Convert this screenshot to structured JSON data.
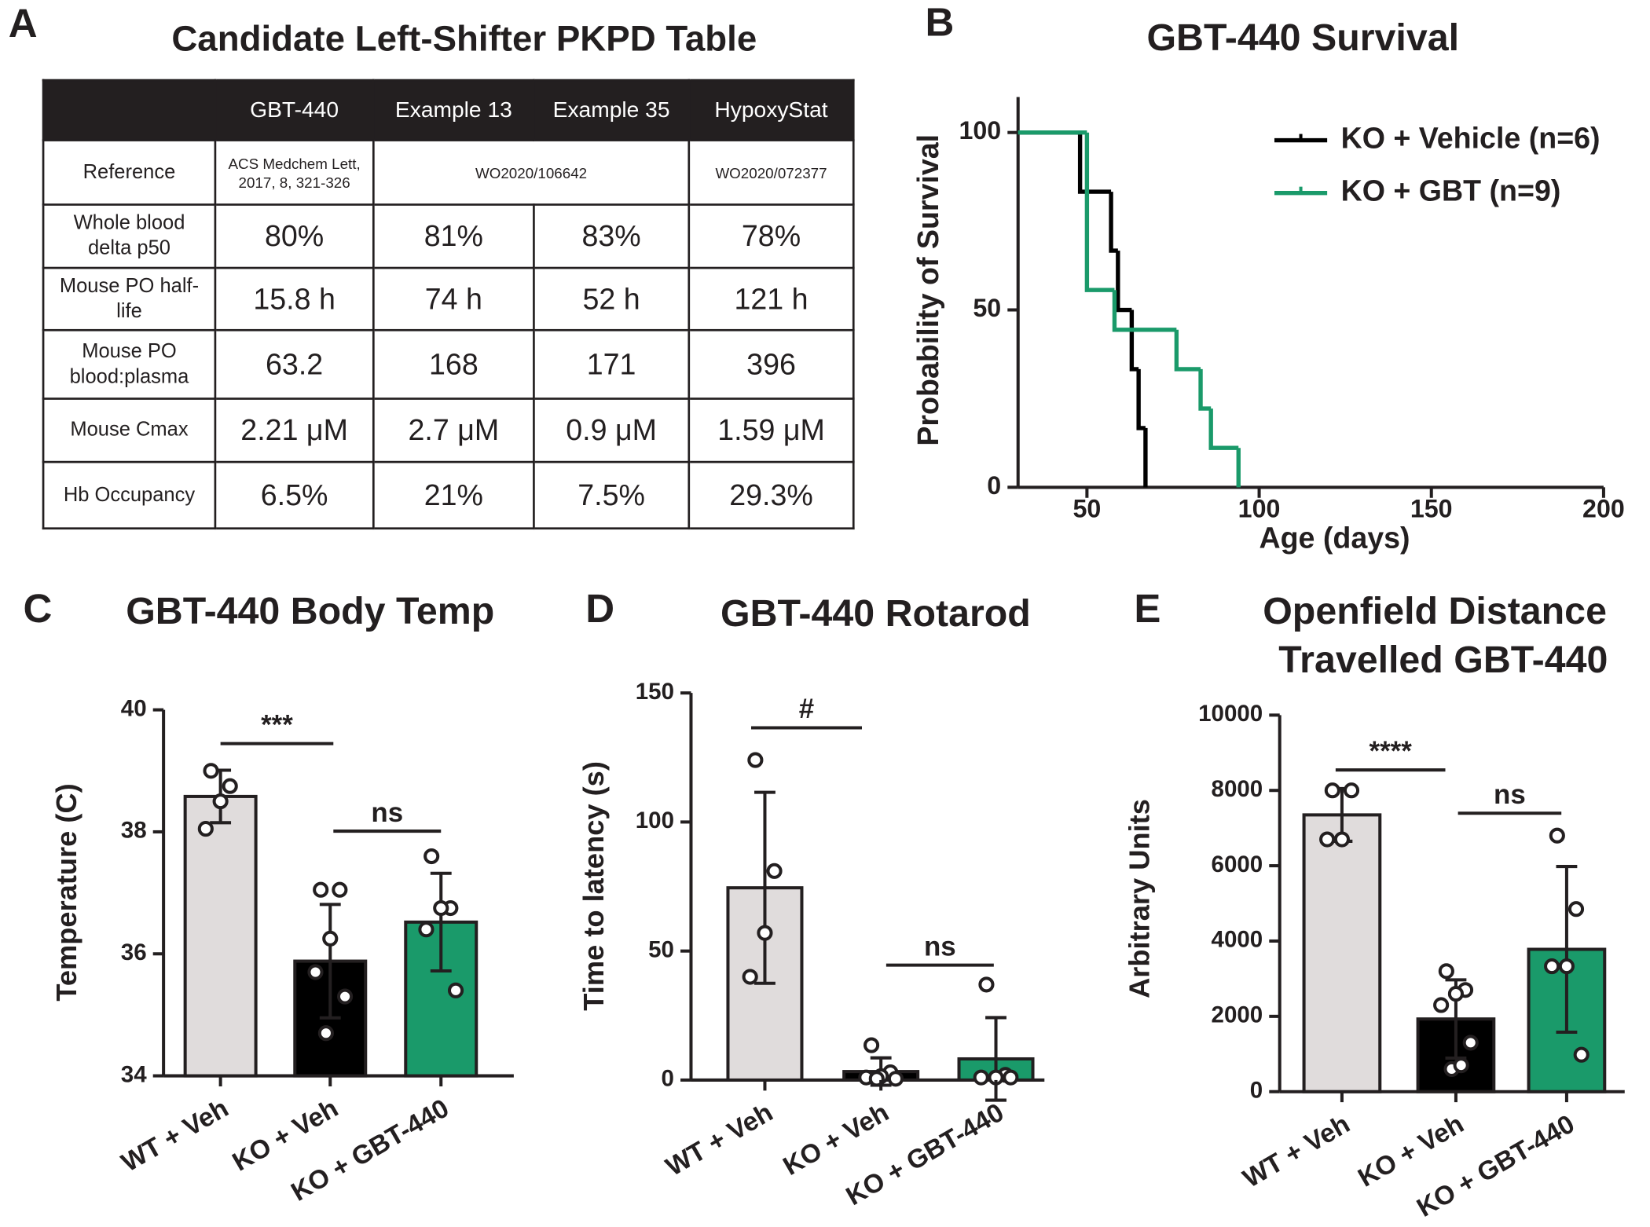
{
  "panel_a": {
    "panel_label": "A",
    "title": "Candidate Left-Shifter PKPD Table",
    "columns": [
      "GBT-440",
      "Example 13",
      "Example 35",
      "HypoxyStat"
    ],
    "reference_label": "Reference",
    "references": [
      "ACS Medchem Lett, 2017, 8, 321-326",
      "WO2020/106642",
      "WO2020/072377"
    ],
    "rows": [
      {
        "label": "Whole blood delta p50",
        "cells": [
          "80%",
          "81%",
          "83%",
          "78%"
        ]
      },
      {
        "label": "Mouse PO half-life",
        "cells": [
          "15.8 h",
          "74 h",
          "52 h",
          "121 h"
        ]
      },
      {
        "label": "Mouse PO blood:plasma",
        "cells": [
          "63.2",
          "168",
          "171",
          "396"
        ]
      },
      {
        "label": "Mouse Cmax",
        "cells": [
          "2.21 μM",
          "2.7 μM",
          "0.9 μM",
          "1.59 μM"
        ]
      },
      {
        "label": "Hb Occupancy",
        "cells": [
          "6.5%",
          "21%",
          "7.5%",
          "29.3%"
        ]
      }
    ]
  },
  "chart_data": [
    {
      "type": "step",
      "panel_label": "B",
      "title": "GBT-440 Survival",
      "xlabel": "Age (days)",
      "ylabel": "Probability of Survival",
      "xlim": [
        30,
        200
      ],
      "xticks": [
        50,
        100,
        150,
        200
      ],
      "ylim": [
        0,
        110
      ],
      "yticks": [
        0,
        50,
        100
      ],
      "series": [
        {
          "name": "KO + Vehicle (n=6)",
          "color": "#000000",
          "x": [
            30,
            48,
            57,
            59,
            63,
            65,
            67
          ],
          "values": [
            100,
            83.3,
            66.7,
            50,
            33.3,
            16.7,
            0
          ]
        },
        {
          "name": "KO + GBT (n=9)",
          "color": "#1a9a6a",
          "x": [
            30,
            50,
            58,
            76,
            83,
            86,
            94
          ],
          "values": [
            100,
            55.6,
            44.4,
            33.3,
            22.2,
            11.1,
            0
          ]
        }
      ]
    },
    {
      "type": "bar",
      "panel_label": "C",
      "title": "GBT-440 Body Temp",
      "ylabel": "Temperature (C)",
      "categories": [
        "WT + Veh",
        "KO + Veh",
        "KO + GBT-440"
      ],
      "colors": [
        "#e0dcdc",
        "#000000",
        "#1a9a6a"
      ],
      "values": [
        38.58,
        35.88,
        36.52
      ],
      "errors": [
        0.43,
        0.93,
        0.8
      ],
      "points": [
        [
          39.0,
          38.75,
          38.5,
          38.05
        ],
        [
          37.05,
          37.05,
          36.25,
          35.7,
          35.3,
          34.7
        ],
        [
          37.6,
          36.75,
          36.75,
          36.4,
          35.4
        ]
      ],
      "ylim": [
        34,
        40
      ],
      "yticks": [
        34,
        36,
        38,
        40
      ],
      "annotations": [
        "***",
        "ns"
      ]
    },
    {
      "type": "bar",
      "panel_label": "D",
      "title": "GBT-440 Rotarod",
      "ylabel": "Time to latency (s)",
      "categories": [
        "WT + Veh",
        "KO + Veh",
        "KO + GBT-440"
      ],
      "colors": [
        "#e0dcdc",
        "#000000",
        "#1a9a6a"
      ],
      "values": [
        74.5,
        3.3,
        8.2
      ],
      "errors": [
        37,
        5.3,
        16
      ],
      "points": [
        [
          124,
          81,
          57,
          40
        ],
        [
          13.5,
          3,
          1.5,
          1,
          0.5,
          0.5
        ],
        [
          37,
          2,
          1,
          1,
          1
        ]
      ],
      "ylim": [
        0,
        150
      ],
      "yticks": [
        0,
        50,
        100,
        150
      ],
      "annotations": [
        "#",
        "ns"
      ]
    },
    {
      "type": "bar",
      "panel_label": "E",
      "title": [
        "Openfield Distance",
        "Travelled GBT-440"
      ],
      "ylabel": "Arbitrary Units",
      "categories": [
        "WT + Veh",
        "KO + Veh",
        "KO + GBT-440"
      ],
      "colors": [
        "#e0dcdc",
        "#000000",
        "#1a9a6a"
      ],
      "values": [
        7350,
        1930,
        3780
      ],
      "errors": [
        700,
        1040,
        2200
      ],
      "points": [
        [
          8000,
          8000,
          6700,
          6700
        ],
        [
          3200,
          2700,
          2600,
          2300,
          1300,
          600,
          700
        ],
        [
          6800,
          4850,
          3330,
          3330,
          980
        ]
      ],
      "ylim": [
        0,
        10000
      ],
      "yticks": [
        0,
        2000,
        4000,
        6000,
        8000,
        10000
      ],
      "annotations": [
        "****",
        "ns"
      ]
    }
  ]
}
